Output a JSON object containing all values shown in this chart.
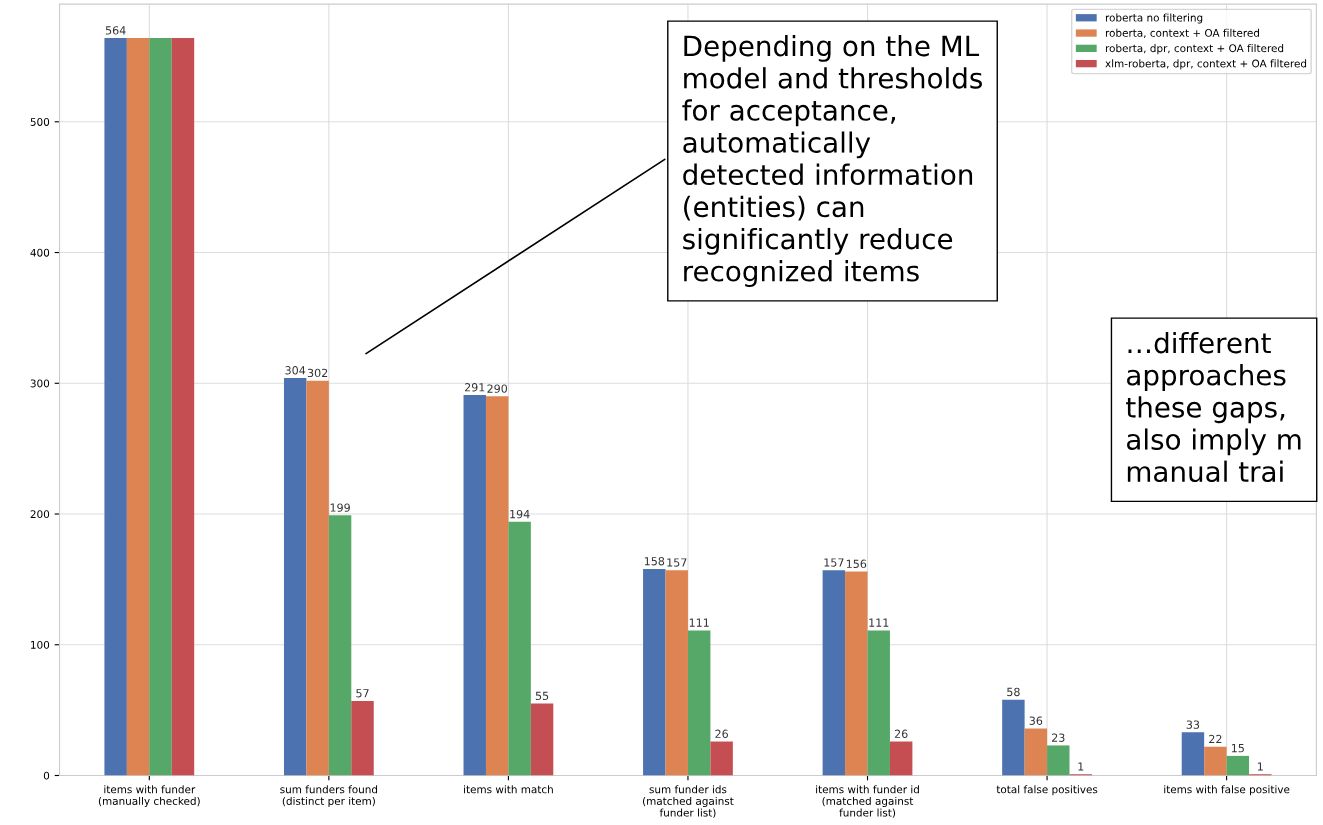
{
  "chart_data": {
    "type": "bar",
    "categories": [
      "items with funder\n(manually checked)",
      "sum funders found\n(distinct per item)",
      "items with match",
      "sum funder ids\n(matched against\nfunder list)",
      "items with funder id\n(matched against\nfunder list)",
      "total false positives",
      "items with false positive"
    ],
    "series": [
      {
        "name": "roberta no filtering",
        "color": "#4c72b0",
        "values": [
          564,
          304,
          291,
          158,
          157,
          58,
          33
        ],
        "value_labels": [
          "564",
          "304",
          "291",
          "158",
          "157",
          "58",
          "33"
        ]
      },
      {
        "name": "roberta, context + OA filtered",
        "color": "#dd8452",
        "values": [
          564,
          302,
          290,
          157,
          156,
          36,
          22
        ],
        "value_labels": [
          null,
          "302",
          "290",
          "157",
          "156",
          "36",
          "22"
        ]
      },
      {
        "name": "roberta, dpr, context + OA filtered",
        "color": "#55a868",
        "values": [
          564,
          199,
          194,
          111,
          111,
          23,
          15
        ],
        "value_labels": [
          null,
          "199",
          "194",
          "111",
          "111",
          "23",
          "15"
        ]
      },
      {
        "name": "xlm-roberta, dpr, context + OA filtered",
        "color": "#c44e52",
        "values": [
          564,
          57,
          55,
          26,
          26,
          1,
          1
        ],
        "value_labels": [
          null,
          "57",
          "55",
          "26",
          "26",
          "1",
          "1"
        ]
      }
    ],
    "ylim": [
      0,
      590
    ],
    "yticks": [
      0,
      100,
      200,
      300,
      400,
      500
    ],
    "grid": true,
    "legend": "top right",
    "annotations": [
      "Depending on the ML\nmodel and thresholds\nfor acceptance,\nautomatically\ndetected information\n(entities) can\nsignificantly reduce\nrecognized items",
      "…different\napproaches\nthese gaps,\nalso imply m\nmanual trai"
    ]
  }
}
